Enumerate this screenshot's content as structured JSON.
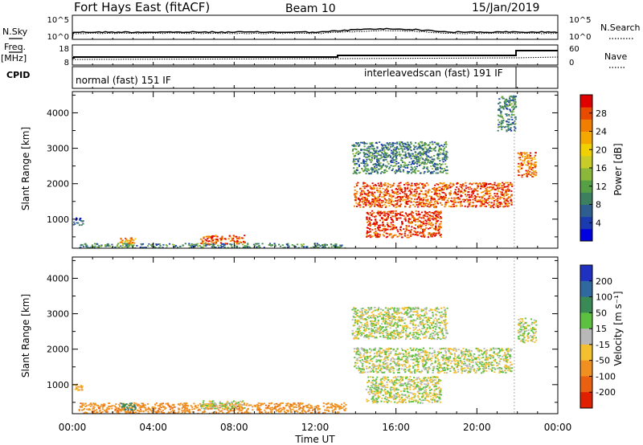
{
  "header": {
    "station": "Fort Hays East (fitACF)",
    "beam": "Beam 10",
    "date": "15/Jan/2019"
  },
  "left_labels": {
    "nsky": "N.Sky",
    "freq": "Freq.",
    "freq_unit": "[MHz]",
    "cpid": "CPID"
  },
  "right_labels": {
    "nsearch": "N.Search",
    "nave": "Nave"
  },
  "noise_axis": {
    "left_ticks": [
      "10^5",
      "10^0"
    ],
    "right_ticks": [
      "10^5",
      "10^0"
    ]
  },
  "freq_axis": {
    "left_ticks": [
      "18",
      "8"
    ],
    "right_ticks": [
      "60",
      "0"
    ]
  },
  "cpid": [
    {
      "label": "normal (fast) 151 IF"
    },
    {
      "label": "interleavedscan (fast) 191 IF"
    }
  ],
  "chart_data": [
    {
      "type": "heatmap",
      "panel": "power",
      "xlabel": "Time UT",
      "ylabel": "Slant Range [km]",
      "x_range_hours": [
        0,
        24
      ],
      "ylim": [
        180,
        4600
      ],
      "x_ticks": [
        "00:00",
        "04:00",
        "08:00",
        "12:00",
        "16:00",
        "20:00",
        "00:00"
      ],
      "y_ticks": [
        1000,
        2000,
        3000,
        4000
      ],
      "colorbar": {
        "label": "Power [dB]",
        "ticks": [
          4,
          8,
          12,
          16,
          20,
          24,
          28
        ],
        "colors": [
          "#0000e0",
          "#1a3ab0",
          "#2e5e90",
          "#3c8060",
          "#55a045",
          "#8ab83a",
          "#c8cc28",
          "#f0d000",
          "#f5a800",
          "#f07e00",
          "#e84a00",
          "#e00000"
        ]
      },
      "echo_regions": [
        {
          "t_start": 0.0,
          "t_end": 0.5,
          "r_start": 850,
          "r_end": 1050,
          "power_db": 8
        },
        {
          "t_start": 0.3,
          "t_end": 13.5,
          "r_start": 200,
          "r_end": 330,
          "power_db": 10
        },
        {
          "t_start": 2.3,
          "t_end": 3.1,
          "r_start": 300,
          "r_end": 500,
          "power_db": 22
        },
        {
          "t_start": 6.3,
          "t_end": 8.5,
          "r_start": 320,
          "r_end": 560,
          "power_db": 26
        },
        {
          "t_start": 13.9,
          "t_end": 21.7,
          "r_start": 1350,
          "r_end": 2050,
          "power_db": 26
        },
        {
          "t_start": 14.5,
          "t_end": 18.2,
          "r_start": 500,
          "r_end": 1250,
          "power_db": 27
        },
        {
          "t_start": 13.8,
          "t_end": 18.5,
          "r_start": 2300,
          "r_end": 3200,
          "power_db": 10
        },
        {
          "t_start": 21.0,
          "t_end": 21.9,
          "r_start": 3500,
          "r_end": 4500,
          "power_db": 10
        },
        {
          "t_start": 22.0,
          "t_end": 22.9,
          "r_start": 2200,
          "r_end": 2900,
          "power_db": 24
        }
      ]
    },
    {
      "type": "heatmap",
      "panel": "velocity",
      "xlabel": "Time UT",
      "ylabel": "Slant Range [km]",
      "x_range_hours": [
        0,
        24
      ],
      "ylim": [
        180,
        4600
      ],
      "x_ticks": [
        "00:00",
        "04:00",
        "08:00",
        "12:00",
        "16:00",
        "20:00",
        "00:00"
      ],
      "y_ticks": [
        1000,
        2000,
        3000,
        4000
      ],
      "colorbar": {
        "label": "Velocity [m s⁻¹]",
        "ticks": [
          200,
          100,
          50,
          15,
          -15,
          -50,
          -100,
          -200
        ],
        "colors": [
          "#2030c0",
          "#3068a0",
          "#3a8a55",
          "#5cc040",
          "#b8b8b8",
          "#f5c030",
          "#f09020",
          "#e86010",
          "#e02000"
        ]
      },
      "echo_regions": [
        {
          "t_start": 0.0,
          "t_end": 0.5,
          "r_start": 850,
          "r_end": 1050,
          "velocity": -30
        },
        {
          "t_start": 0.3,
          "t_end": 13.5,
          "r_start": 200,
          "r_end": 500,
          "velocity": -60
        },
        {
          "t_start": 2.3,
          "t_end": 3.1,
          "r_start": 300,
          "r_end": 520,
          "velocity": 60
        },
        {
          "t_start": 6.3,
          "t_end": 8.5,
          "r_start": 320,
          "r_end": 560,
          "velocity": 0
        },
        {
          "t_start": 13.9,
          "t_end": 21.7,
          "r_start": 1350,
          "r_end": 2050,
          "velocity": 0
        },
        {
          "t_start": 14.5,
          "t_end": 18.2,
          "r_start": 500,
          "r_end": 1250,
          "velocity": 0
        },
        {
          "t_start": 13.8,
          "t_end": 18.5,
          "r_start": 2300,
          "r_end": 3200,
          "velocity": 0
        },
        {
          "t_start": 22.0,
          "t_end": 22.9,
          "r_start": 2200,
          "r_end": 2900,
          "velocity": 0
        }
      ]
    }
  ]
}
